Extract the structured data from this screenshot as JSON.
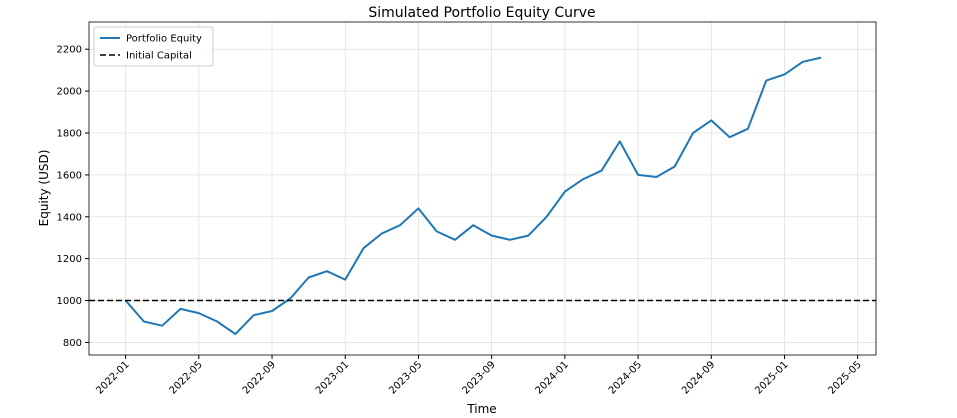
{
  "chart_data": {
    "type": "line",
    "title": "Simulated Portfolio Equity Curve",
    "xlabel": "Time",
    "ylabel": "Equity (USD)",
    "x": [
      "2022-01",
      "2022-02",
      "2022-03",
      "2022-04",
      "2022-05",
      "2022-06",
      "2022-07",
      "2022-08",
      "2022-09",
      "2022-10",
      "2022-11",
      "2022-12",
      "2023-01",
      "2023-02",
      "2023-03",
      "2023-04",
      "2023-05",
      "2023-06",
      "2023-07",
      "2023-08",
      "2023-09",
      "2023-10",
      "2023-11",
      "2023-12",
      "2024-01",
      "2024-02",
      "2024-03",
      "2024-04",
      "2024-05",
      "2024-06",
      "2024-07",
      "2024-08",
      "2024-09",
      "2024-10",
      "2024-11",
      "2024-12",
      "2025-01",
      "2025-02",
      "2025-03"
    ],
    "series": [
      {
        "name": "Portfolio Equity",
        "color": "#1f77b4",
        "values": [
          1000,
          900,
          880,
          960,
          940,
          900,
          840,
          930,
          950,
          1010,
          1110,
          1140,
          1100,
          1250,
          1320,
          1360,
          1440,
          1330,
          1290,
          1360,
          1310,
          1290,
          1310,
          1400,
          1520,
          1580,
          1620,
          1760,
          1600,
          1590,
          1640,
          1800,
          1860,
          1780,
          1820,
          2050,
          2080,
          2140,
          2160
        ]
      }
    ],
    "hline": {
      "name": "Initial Capital",
      "color": "#000000",
      "value": 1000
    },
    "xlim": [
      "2021-11",
      "2025-06"
    ],
    "xticks": [
      "2022-01",
      "2022-05",
      "2022-09",
      "2023-01",
      "2023-05",
      "2023-09",
      "2024-01",
      "2024-05",
      "2024-09",
      "2025-01",
      "2025-05"
    ],
    "ylim": [
      740,
      2330
    ],
    "yticks": [
      800,
      1000,
      1200,
      1400,
      1600,
      1800,
      2000,
      2200
    ],
    "grid": true,
    "legend": "upper left"
  }
}
